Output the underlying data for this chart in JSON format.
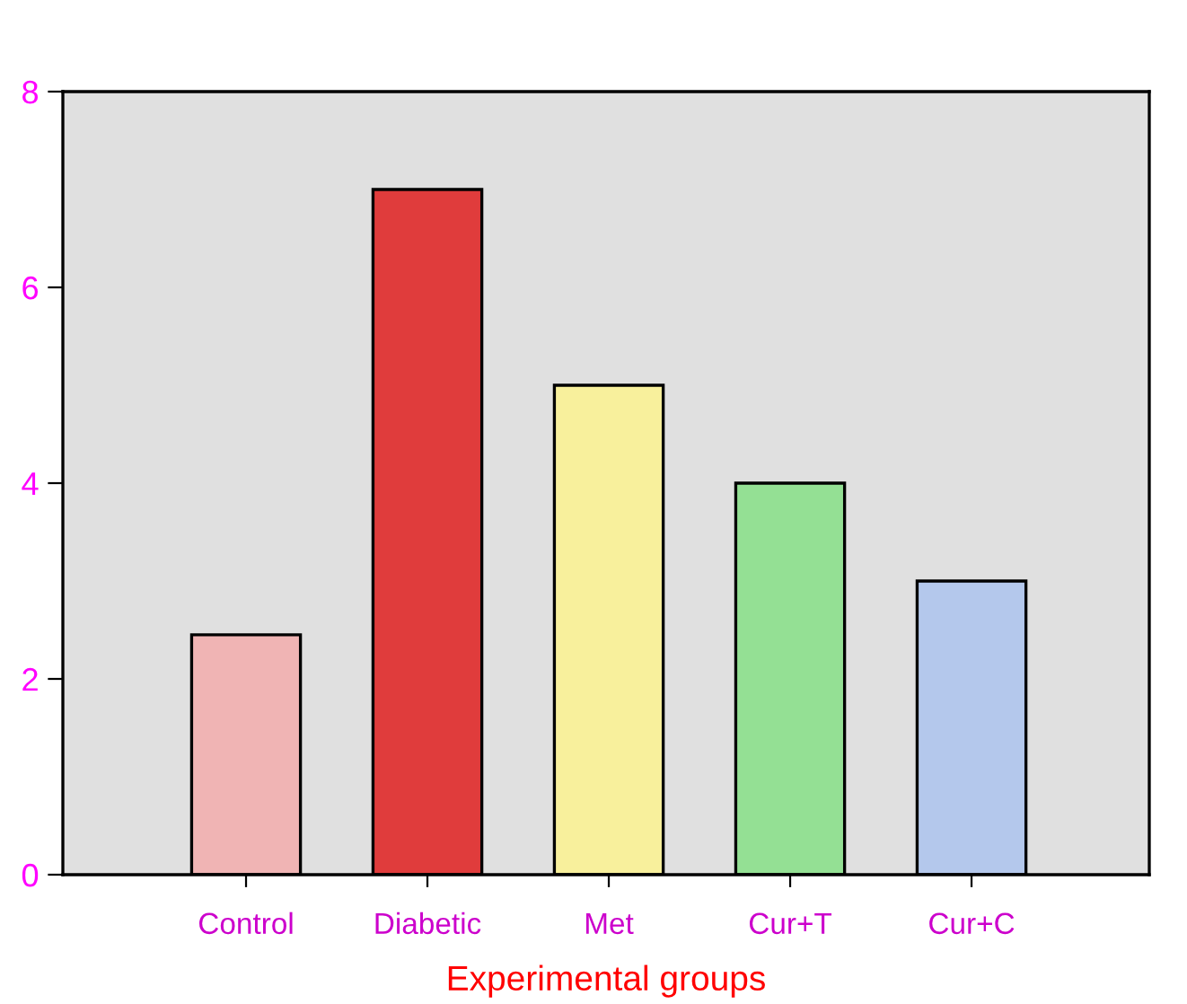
{
  "chart_data": {
    "type": "bar",
    "xlabel": "Experimental groups",
    "categories": [
      "Control",
      "Diabetic",
      "Met",
      "Cur+T",
      "Cur+C"
    ],
    "values": [
      2.45,
      7.0,
      5.0,
      4.0,
      3.0
    ],
    "colors": [
      "#f0b4b4",
      "#e03c3c",
      "#f8f09c",
      "#94e094",
      "#b4c8ec"
    ],
    "ylim": [
      0,
      8
    ],
    "yticks": [
      0,
      2,
      4,
      6,
      8
    ],
    "grid": false,
    "legend": false
  }
}
